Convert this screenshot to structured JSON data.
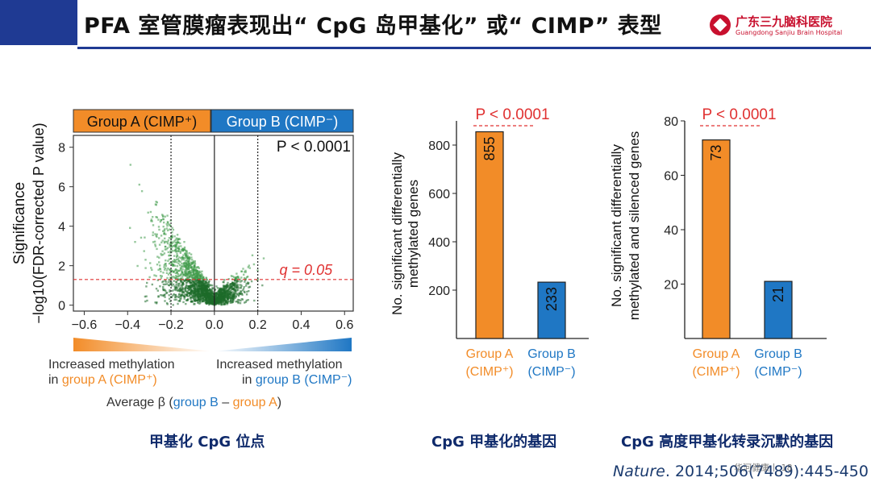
{
  "slide": {
    "title": "PFA 室管膜瘤表现出“ CpG 岛甲基化” 或“ CIMP” 表型",
    "logo_cn": "广东三九脑科医院",
    "logo_en": "Guangdong Sanjiu Brain Hospital",
    "caption_left": "甲基化 CpG 位点",
    "caption_mid": "CpG 甲基化的基因",
    "caption_right": "CpG 高度甲基化转录沉默的基因",
    "citation_journal": "Nature",
    "citation_ref": ". 2014;506(7489):445-450",
    "watermark": "华河健康丨 18"
  },
  "colors": {
    "orange": "#f28c28",
    "blue": "#1f77c4",
    "green": "#2e7d32",
    "red": "#e03131",
    "navy": "#1f3a93"
  },
  "chart_data": [
    {
      "type": "scatter",
      "title": "",
      "group_a_label": "Group A (CIMP⁺)",
      "group_b_label": "Group B (CIMP⁻)",
      "ylabel_line1": "Significance",
      "ylabel_line2": "−log10(FDR-corrected P value)",
      "xlabel_left_1": "Increased methylation",
      "xlabel_left_2a": "in ",
      "xlabel_left_2b": "group A (CIMP⁺)",
      "xlabel_right_1": "Increased methylation",
      "xlabel_right_2a": "in ",
      "xlabel_right_2b": "group B (CIMP⁻)",
      "xaxis_title_a": "Average β (",
      "xaxis_title_b": "group B",
      "xaxis_title_c": " – ",
      "xaxis_title_d": "group A",
      "xaxis_title_e": ")",
      "p_label": "P < 0.0001",
      "q_label": "q = 0.05",
      "q_line_y": 1.3,
      "vlines_x": [
        -0.2,
        0.2
      ],
      "xlim": [
        -0.65,
        0.64
      ],
      "ylim": [
        -0.3,
        8.6
      ],
      "xticks": [
        "−0.6",
        "−0.4",
        "−0.2",
        "0.0",
        "0.2",
        "0.4",
        "0.6"
      ],
      "xtick_values": [
        -0.6,
        -0.4,
        -0.2,
        0.0,
        0.2,
        0.4,
        0.6
      ],
      "yticks": [
        "0",
        "2",
        "4",
        "6",
        "8"
      ],
      "ytick_values": [
        0,
        2,
        4,
        6,
        8
      ],
      "distribution": "Thousands of CpG sites; volcano shape skewed toward increased methylation in group A (negative x)"
    },
    {
      "type": "bar",
      "ylabel_line1": "No. significant differentially",
      "ylabel_line2": "methylated genes",
      "categories": [
        [
          "Group A",
          "(CIMP⁺)"
        ],
        [
          "Group B",
          "(CIMP⁻)"
        ]
      ],
      "values": [
        855,
        233
      ],
      "value_labels": [
        "855",
        "233"
      ],
      "bar_colors": [
        "#f28c28",
        "#1f77c4"
      ],
      "p_label": "P < 0.0001",
      "ylim": [
        0,
        900
      ],
      "yticks": [
        "200",
        "400",
        "600",
        "800"
      ],
      "ytick_values": [
        200,
        400,
        600,
        800
      ]
    },
    {
      "type": "bar",
      "ylabel_line1": "No. significant differentially",
      "ylabel_line2": "methylated and silenced genes",
      "categories": [
        [
          "Group A",
          "(CIMP⁺)"
        ],
        [
          "Group B",
          "(CIMP⁻)"
        ]
      ],
      "values": [
        73,
        21
      ],
      "value_labels": [
        "73",
        "21"
      ],
      "bar_colors": [
        "#f28c28",
        "#1f77c4"
      ],
      "p_label": "P < 0.0001",
      "ylim": [
        0,
        80
      ],
      "yticks": [
        "20",
        "40",
        "60",
        "80"
      ],
      "ytick_values": [
        20,
        40,
        60,
        80
      ]
    }
  ]
}
